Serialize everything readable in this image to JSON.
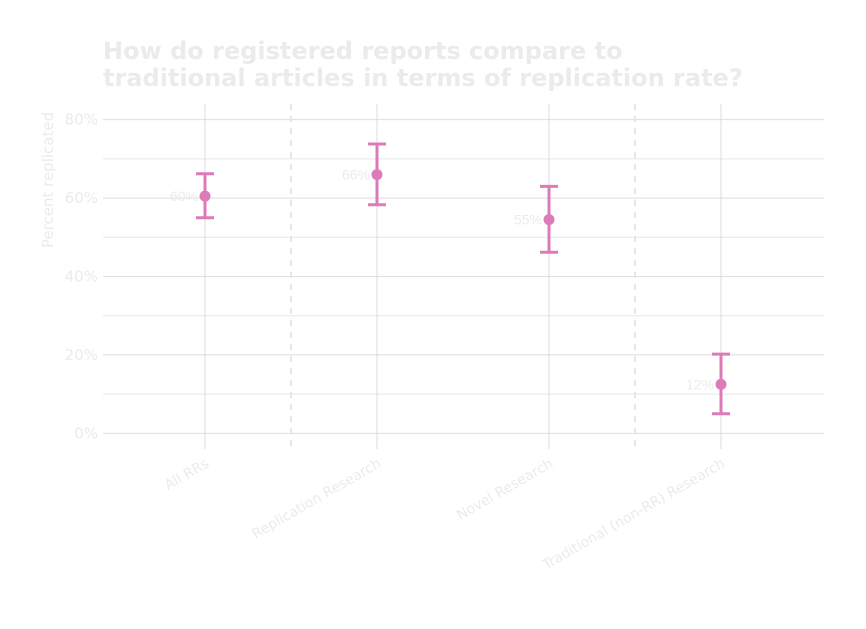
{
  "chart_data": {
    "type": "scatter",
    "title": "How do registered reports compare to traditional articles in terms of replication rate?",
    "title_lines": [
      "How do registered reports compare to",
      "traditional articles in terms of replication rate?"
    ],
    "xlabel": "",
    "ylabel": "Percent replicated",
    "categories": [
      "All RRs",
      "Replication Research",
      "Novel Research",
      "Traditional (non-RR) Research"
    ],
    "values": [
      60.5,
      66,
      54.5,
      12.5
    ],
    "ci_low": [
      55,
      58.3,
      46.2,
      5
    ],
    "ci_high": [
      66.2,
      73.8,
      63,
      20.2
    ],
    "data_labels": [
      "60%",
      "66%",
      "55%",
      "12%"
    ],
    "ylim": [
      -4,
      84
    ],
    "yticks": [
      0,
      20,
      40,
      60,
      80
    ],
    "ytick_labels": [
      "0%",
      "20%",
      "40%",
      "60%",
      "80%"
    ],
    "separators_between": [
      [
        0,
        1
      ],
      [
        2,
        3
      ]
    ],
    "grid": true,
    "legend": "none",
    "colors": {
      "point": "#dd7bb8",
      "text": "#ebebeb",
      "grid_major": "#dedede",
      "grid_minor": "#e8e8e8",
      "vgrid": "#d3d3d3",
      "separator": "#e6e6e6"
    }
  }
}
